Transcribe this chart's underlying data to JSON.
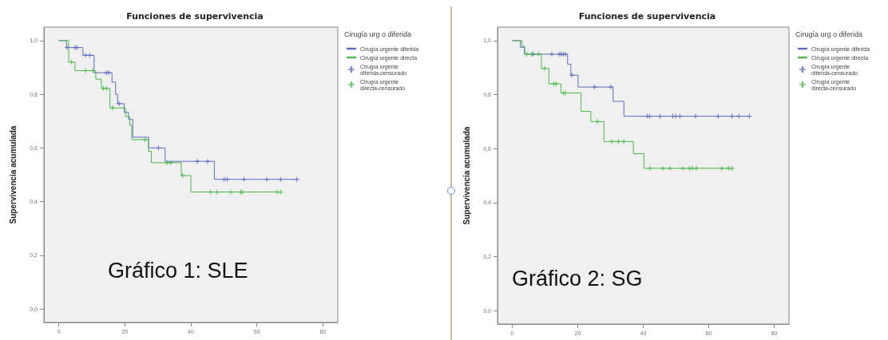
{
  "chart_data": [
    {
      "type": "step",
      "title": "Funciones de supervivencia",
      "ylabel": "Supervivencia acumulada",
      "legend_title": "Cirugía urg o diferida",
      "annotations": [
        "Gráfico 1: SLE"
      ],
      "legend": "top right",
      "grid": false,
      "xlim": [
        -4.5,
        84.5
      ],
      "xticks": [
        0,
        20,
        40,
        60,
        80
      ],
      "ylim": [
        -0.05,
        1.05
      ],
      "yticks": [
        {
          "value": 0,
          "label": "0,0"
        },
        {
          "value": 0.2,
          "label": "0,2"
        },
        {
          "value": 0.4,
          "label": "0,4"
        },
        {
          "value": 0.6,
          "label": "0,6"
        },
        {
          "value": 0.8,
          "label": "0,8"
        },
        {
          "value": 1,
          "label": "1,0"
        }
      ],
      "series": [
        {
          "name": "Cirugía urgente diferida",
          "type": "step",
          "marker": "none",
          "color": "#5b6dbf",
          "x": [
            0,
            2.3,
            7.3,
            10.7,
            16.1,
            17.2,
            17.8,
            19.8,
            21.1,
            22.4,
            27.2,
            32.2,
            47.1,
            72.1
          ],
          "values": [
            1,
            0.974,
            0.945,
            0.88,
            0.845,
            0.8,
            0.765,
            0.733,
            0.706,
            0.64,
            0.6,
            0.55,
            0.483,
            0.483
          ]
        },
        {
          "name": "Cirugía urgente directa",
          "type": "step",
          "marker": "none",
          "color": "#4db84d",
          "x": [
            0,
            3,
            4.9,
            11.2,
            12.9,
            15.5,
            20.2,
            21.5,
            22.1,
            27.2,
            28,
            37.1,
            40,
            67.2
          ],
          "values": [
            1,
            0.92,
            0.888,
            0.856,
            0.822,
            0.749,
            0.717,
            0.685,
            0.631,
            0.588,
            0.545,
            0.497,
            0.436,
            0.436
          ]
        },
        {
          "name": "Cirugía urgente diferida-censurado",
          "type": "scatter",
          "marker": "cross",
          "color": "#5b6dbf",
          "x": [
            2.5,
            4.9,
            5.5,
            8.1,
            9.4,
            14.4,
            15.1,
            18.3,
            30.2,
            42,
            45.1,
            50.1,
            51,
            56.1,
            63,
            67.2,
            72.1
          ],
          "values": [
            0.974,
            0.974,
            0.974,
            0.945,
            0.945,
            0.88,
            0.88,
            0.765,
            0.6,
            0.55,
            0.55,
            0.483,
            0.483,
            0.483,
            0.483,
            0.483,
            0.483
          ]
        },
        {
          "name": "Cirugía urgente directa-censurado",
          "type": "scatter",
          "marker": "cross",
          "color": "#4db84d",
          "x": [
            3.8,
            8.1,
            10.3,
            13.5,
            14.4,
            16.3,
            26.1,
            32.8,
            33.9,
            37.5,
            46,
            47.9,
            52.1,
            55.1,
            55.6,
            66.1,
            67.2
          ],
          "values": [
            0.92,
            0.888,
            0.888,
            0.822,
            0.822,
            0.749,
            0.631,
            0.545,
            0.545,
            0.497,
            0.436,
            0.436,
            0.436,
            0.436,
            0.436,
            0.436,
            0.436
          ]
        }
      ]
    },
    {
      "type": "step",
      "title": "Funciones de supervivencia",
      "ylabel": "Supervivencia acumulada",
      "legend_title": "Cirugía urg o diferida",
      "annotations": [
        "Gráfico 2: SG"
      ],
      "legend": "top right",
      "grid": false,
      "xlim": [
        -4.5,
        84.5
      ],
      "xticks": [
        0,
        20,
        40,
        60,
        80
      ],
      "ylim": [
        -0.05,
        1.05
      ],
      "yticks": [
        {
          "value": 0,
          "label": "0,0"
        },
        {
          "value": 0.2,
          "label": "0,2"
        },
        {
          "value": 0.4,
          "label": "0,4"
        },
        {
          "value": 0.6,
          "label": "0,6"
        },
        {
          "value": 0.8,
          "label": "0,8"
        },
        {
          "value": 1,
          "label": "1,0"
        }
      ],
      "series": [
        {
          "name": "Cirugía urgente diferida",
          "type": "step",
          "marker": "none",
          "color": "#5b6dbf",
          "x": [
            0,
            2.5,
            3.7,
            16.9,
            17.9,
            20.1,
            30.8,
            34.1,
            72.4
          ],
          "values": [
            1,
            0.975,
            0.95,
            0.913,
            0.872,
            0.828,
            0.775,
            0.72,
            0.72
          ]
        },
        {
          "name": "Cirugía urgente directa",
          "type": "step",
          "marker": "none",
          "color": "#4db84d",
          "x": [
            0,
            3,
            3.8,
            8.9,
            11.2,
            14.9,
            21,
            24,
            28,
            37,
            40.2,
            67.1
          ],
          "values": [
            1,
            0.979,
            0.95,
            0.897,
            0.84,
            0.806,
            0.738,
            0.7,
            0.626,
            0.581,
            0.527,
            0.527
          ]
        },
        {
          "name": "Cirugía urgente diferida-censurado",
          "type": "scatter",
          "marker": "cross",
          "color": "#5b6dbf",
          "x": [
            6.4,
            12.1,
            14.3,
            14.9,
            15.6,
            16.2,
            18.2,
            25.1,
            30.1,
            41.2,
            41.9,
            45.1,
            49,
            49.9,
            51.2,
            56,
            62.9,
            67.1,
            69.2,
            72.4
          ],
          "values": [
            0.95,
            0.95,
            0.95,
            0.95,
            0.95,
            0.95,
            0.872,
            0.828,
            0.828,
            0.72,
            0.72,
            0.72,
            0.72,
            0.72,
            0.72,
            0.72,
            0.72,
            0.72,
            0.72,
            0.72
          ]
        },
        {
          "name": "Cirugía urgente directa-censurado",
          "type": "scatter",
          "marker": "cross",
          "color": "#4db84d",
          "x": [
            4.5,
            6,
            8,
            9.9,
            12.7,
            13.4,
            15.6,
            16.2,
            26,
            30.4,
            32.4,
            34.1,
            42.1,
            46,
            48.2,
            52.1,
            54.1,
            54.9,
            56.2,
            64,
            66,
            67.1
          ],
          "values": [
            0.95,
            0.95,
            0.95,
            0.897,
            0.84,
            0.84,
            0.806,
            0.806,
            0.7,
            0.626,
            0.626,
            0.626,
            0.527,
            0.527,
            0.527,
            0.527,
            0.527,
            0.527,
            0.527,
            0.527,
            0.527,
            0.527
          ]
        }
      ]
    }
  ]
}
